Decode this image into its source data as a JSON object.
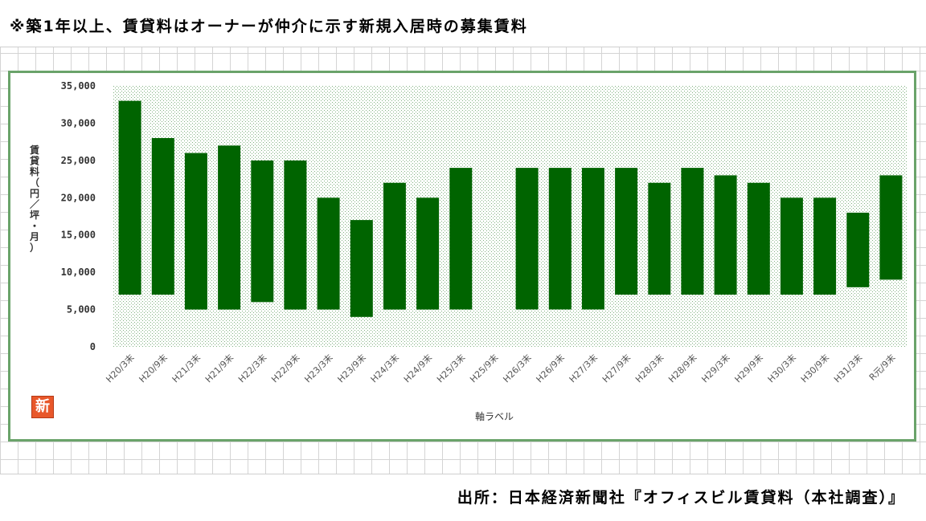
{
  "note": "※築1年以上、賃貸料はオーナーが仲介に示す新規入居時の募集賃料",
  "source": "出所：日本経済新聞社『オフィスビル賃貸料（本社調査）』",
  "logo_char": "新",
  "colors": {
    "bar": "#006400",
    "frame": "#6aa36a",
    "plot_dot": "#9fc29f"
  },
  "chart_data": {
    "type": "bar",
    "subtype": "floating-range",
    "title": "",
    "xlabel": "軸ラベル",
    "ylabel": "賃貸料（円／坪・月）",
    "ylim": [
      0,
      35000
    ],
    "yticks": [
      0,
      5000,
      10000,
      15000,
      20000,
      25000,
      30000,
      35000
    ],
    "ytick_labels": [
      "0",
      "5,000",
      "10,000",
      "15,000",
      "20,000",
      "25,000",
      "30,000",
      "35,000"
    ],
    "grid": false,
    "legend": "none",
    "categories": [
      "H20/3末",
      "H20/9末",
      "H21/3末",
      "H21/9末",
      "H22/3末",
      "H22/9末",
      "H23/3末",
      "H23/9末",
      "H24/3末",
      "H24/9末",
      "H25/3末",
      "H25/9末",
      "H26/3末",
      "H26/9末",
      "H27/3末",
      "H27/9末",
      "H28/3末",
      "H28/9末",
      "H29/3末",
      "H29/9末",
      "H30/3末",
      "H30/9末",
      "H31/3末",
      "R元/9末"
    ],
    "low": [
      7000,
      7000,
      5000,
      5000,
      6000,
      5000,
      5000,
      4000,
      5000,
      5000,
      5000,
      null,
      5000,
      5000,
      5000,
      7000,
      7000,
      7000,
      7000,
      7000,
      7000,
      7000,
      8000,
      9000
    ],
    "high": [
      33000,
      28000,
      26000,
      27000,
      25000,
      25000,
      20000,
      17000,
      22000,
      20000,
      24000,
      null,
      24000,
      24000,
      24000,
      24000,
      22000,
      24000,
      23000,
      22000,
      20000,
      20000,
      18000,
      23000
    ]
  }
}
